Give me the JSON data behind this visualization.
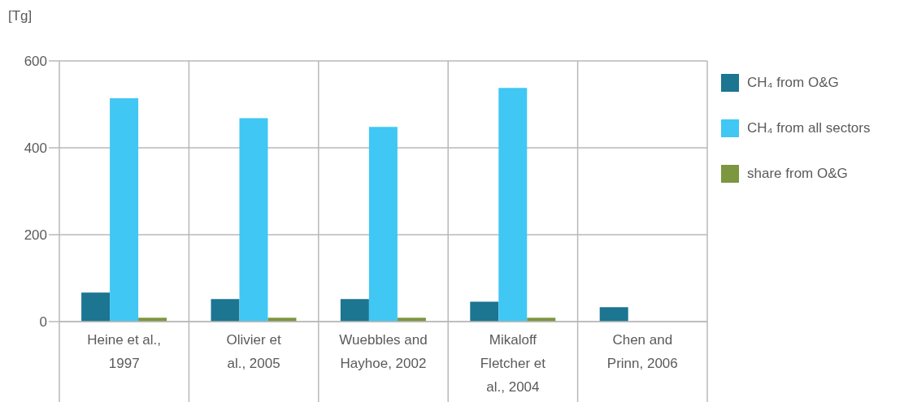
{
  "chart_data": {
    "type": "bar",
    "ylabel": "[Tg]",
    "categories": [
      "Heine et al., 1997",
      "Olivier et al., 2005",
      "Wuebbles and Hayhoe, 2002",
      "Mikaloff Fletcher et al., 2004",
      "Chen and Prinn, 2006"
    ],
    "series": [
      {
        "name": "CH₄ from O&G",
        "color": "#1c7591",
        "values": [
          67,
          52,
          52,
          46,
          33
        ]
      },
      {
        "name": "CH₄ from all sectors",
        "color": "#40c7f4",
        "values": [
          514,
          468,
          448,
          538,
          null
        ]
      },
      {
        "name": "share from O&G",
        "color": "#7d9640",
        "values": [
          9,
          9,
          9,
          9,
          null
        ]
      }
    ],
    "ylim": [
      0,
      600
    ],
    "yticks": [
      0,
      200,
      400,
      600
    ],
    "grid": true,
    "legend": "right"
  }
}
